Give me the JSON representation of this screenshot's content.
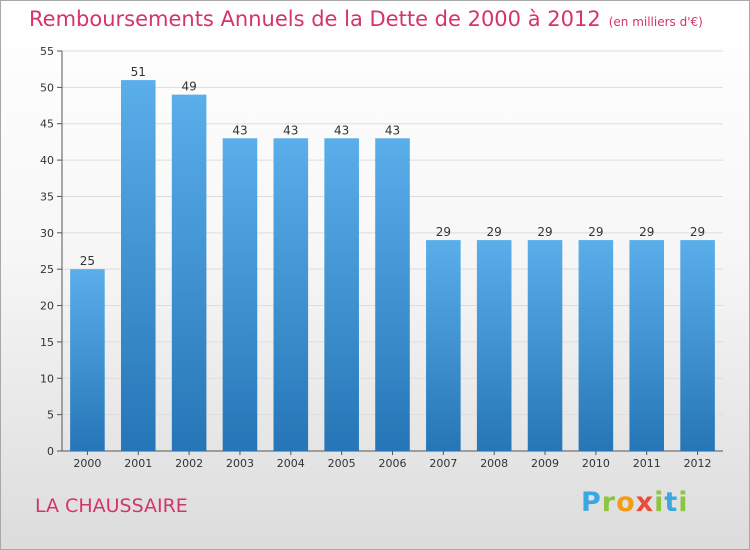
{
  "title": {
    "main": "Remboursements Annuels de la Dette de 2000 à 2012",
    "unit": "(en milliers d'€)"
  },
  "commune": "LA CHAUSSAIRE",
  "logo": {
    "letters": [
      "P",
      "r",
      "o",
      "x",
      "i",
      "t",
      "i"
    ]
  },
  "colors": {
    "bar_top": "#5aaeea",
    "bar_bottom": "#2676b7",
    "title": "#d6336c",
    "grid": "#dddddd"
  },
  "chart_data": {
    "type": "bar",
    "categories": [
      "2000",
      "2001",
      "2002",
      "2003",
      "2004",
      "2005",
      "2006",
      "2007",
      "2008",
      "2009",
      "2010",
      "2011",
      "2012"
    ],
    "values": [
      25,
      51,
      49,
      43,
      43,
      43,
      43,
      29,
      29,
      29,
      29,
      29,
      29
    ],
    "ylim": [
      0,
      55
    ],
    "yticks": [
      0,
      5,
      10,
      15,
      20,
      25,
      30,
      35,
      40,
      45,
      50,
      55
    ],
    "grid": true
  }
}
